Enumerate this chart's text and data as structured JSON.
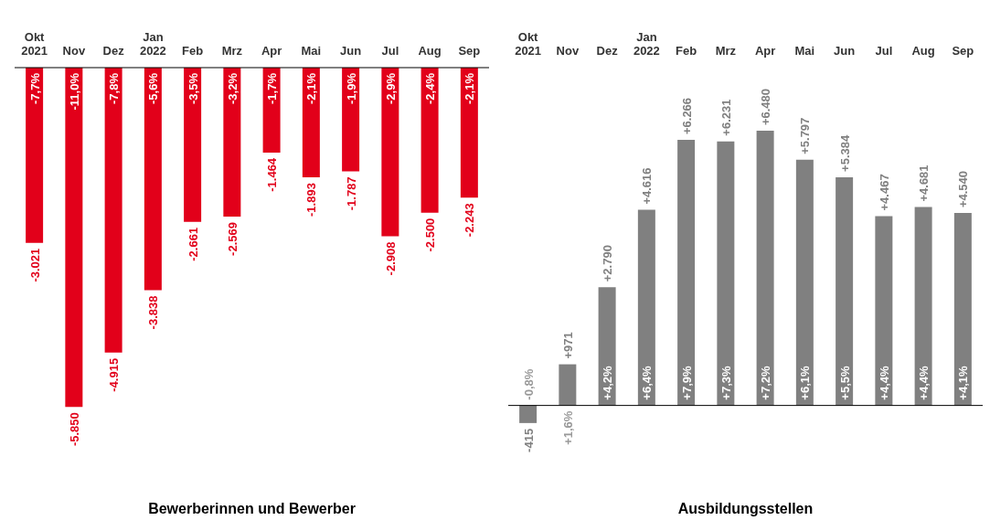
{
  "chart_data": [
    {
      "type": "bar",
      "title": "Bewerberinnen und Bewerber",
      "categories": [
        "Okt 2021",
        "Nov",
        "Dez",
        "Jan 2022",
        "Feb",
        "Mrz",
        "Apr",
        "Mai",
        "Jun",
        "Jul",
        "Aug",
        "Sep"
      ],
      "series": [
        {
          "color": "#e2001a",
          "values": [
            -3021,
            -5850,
            -4915,
            -3838,
            -2661,
            -2569,
            -1464,
            -1893,
            -1787,
            -2908,
            -2500,
            -2243
          ],
          "value_labels": [
            "-3.021",
            "-5.850",
            "-4.915",
            "-3.838",
            "-2.661",
            "-2.569",
            "-1.464",
            "-1.893",
            "-1.787",
            "-2.908",
            "-2.500",
            "-2.243"
          ]
        }
      ],
      "annotations": [
        "-7,7%",
        "-11,0%",
        "-7,8%",
        "-5,6%",
        "-3,5%",
        "-3,2%",
        "-1,7%",
        "-2,1%",
        "-1,9%",
        "-2,9%",
        "-2,4%",
        "-2,1%"
      ]
    },
    {
      "type": "bar",
      "title": "Ausbildungsstellen",
      "categories": [
        "Okt 2021",
        "Nov",
        "Dez",
        "Jan 2022",
        "Feb",
        "Mrz",
        "Apr",
        "Mai",
        "Jun",
        "Jul",
        "Aug",
        "Sep"
      ],
      "series": [
        {
          "color": "#808080",
          "values": [
            -415,
            971,
            2790,
            4616,
            6266,
            6231,
            6480,
            5797,
            5384,
            4467,
            4681,
            4540
          ],
          "value_labels": [
            "-415",
            "+971",
            "+2.790",
            "+4.616",
            "+6.266",
            "+6.231",
            "+6.480",
            "+5.797",
            "+5.384",
            "+4.467",
            "+4.681",
            "+4.540"
          ]
        }
      ],
      "annotations": [
        "-0,8%",
        "+1,6%",
        "+4,2%",
        "+6,4%",
        "+7,9%",
        "+7,3%",
        "+7,2%",
        "+6,1%",
        "+5,5%",
        "+4,4%",
        "+4,4%",
        "+4,1%"
      ]
    }
  ]
}
